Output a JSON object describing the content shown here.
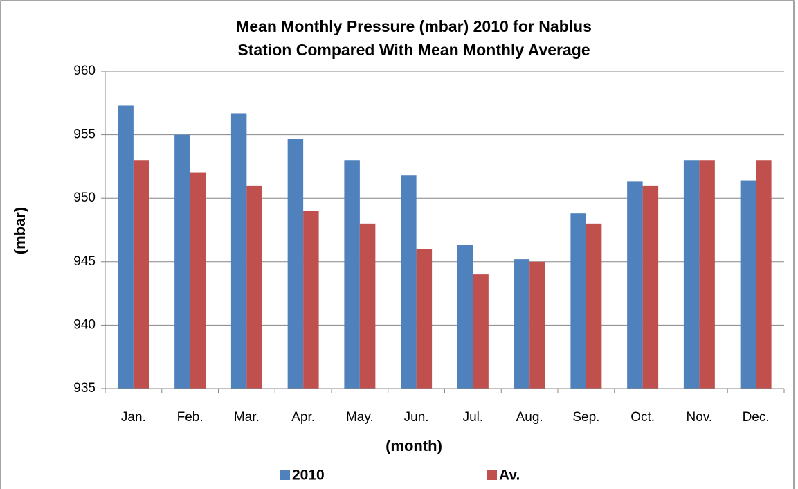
{
  "chart_data": {
    "type": "bar",
    "title": [
      "Mean Monthly Pressure (mbar) 2010 for  Nablus",
      "Station Compared With Mean Monthly Average"
    ],
    "xlabel": "(month)",
    "ylabel": "(mbar)",
    "categories": [
      "Jan.",
      "Feb.",
      "Mar.",
      "Apr.",
      "May.",
      "Jun.",
      "Jul.",
      "Aug.",
      "Sep.",
      "Oct.",
      "Nov.",
      "Dec."
    ],
    "series": [
      {
        "name": "2010",
        "color": "#4f81bd",
        "values": [
          957.3,
          955.0,
          956.7,
          954.7,
          953.0,
          951.8,
          946.3,
          945.2,
          948.8,
          951.3,
          953.0,
          951.4
        ]
      },
      {
        "name": "Av.",
        "color": "#c0504d",
        "values": [
          953,
          952,
          951,
          949,
          948,
          946,
          944,
          945,
          948,
          951,
          953,
          953
        ]
      }
    ],
    "ylim": [
      935,
      960
    ],
    "yticks": [
      935,
      940,
      945,
      950,
      955,
      960
    ],
    "grid": true,
    "legend": "bottom"
  }
}
